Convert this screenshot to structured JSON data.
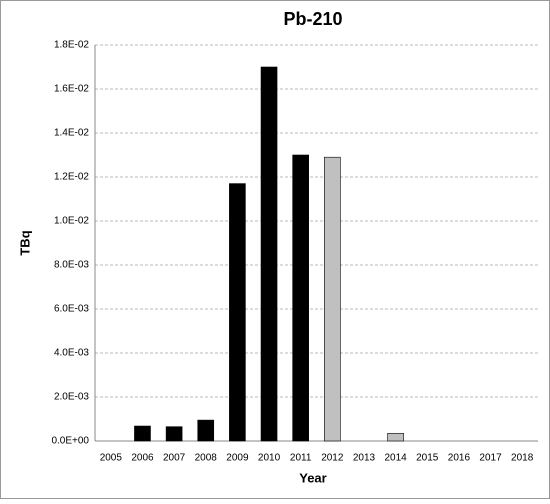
{
  "chart_data": {
    "type": "bar",
    "title": "Pb-210",
    "x_label": "Year",
    "y_label": "TBq",
    "categories": [
      "2005",
      "2006",
      "2007",
      "2008",
      "2009",
      "2010",
      "2011",
      "2012",
      "2013",
      "2014",
      "2015",
      "2016",
      "2017",
      "2018"
    ],
    "values": [
      null,
      0.00068,
      0.00065,
      0.00095,
      0.0117,
      0.017,
      0.013,
      0.0129,
      null,
      0.00035,
      null,
      null,
      null,
      null
    ],
    "colors": [
      null,
      "#000000",
      "#000000",
      "#000000",
      "#000000",
      "#000000",
      "#000000",
      "#c0c0c0",
      null,
      "#c0c0c0",
      null,
      null,
      null,
      null
    ],
    "ylim": [
      0,
      0.018
    ],
    "yticks": [
      {
        "value": 0,
        "label": "0.0E+00"
      },
      {
        "value": 0.002,
        "label": "2.0E-03"
      },
      {
        "value": 0.004,
        "label": "4.0E-03"
      },
      {
        "value": 0.006,
        "label": "6.0E-03"
      },
      {
        "value": 0.008,
        "label": "8.0E-03"
      },
      {
        "value": 0.01,
        "label": "1.0E-02"
      },
      {
        "value": 0.012,
        "label": "1.2E-02"
      },
      {
        "value": 0.014,
        "label": "1.4E-02"
      },
      {
        "value": 0.016,
        "label": "1.6E-02"
      },
      {
        "value": 0.018,
        "label": "1.8E-02"
      }
    ],
    "grid": true
  }
}
